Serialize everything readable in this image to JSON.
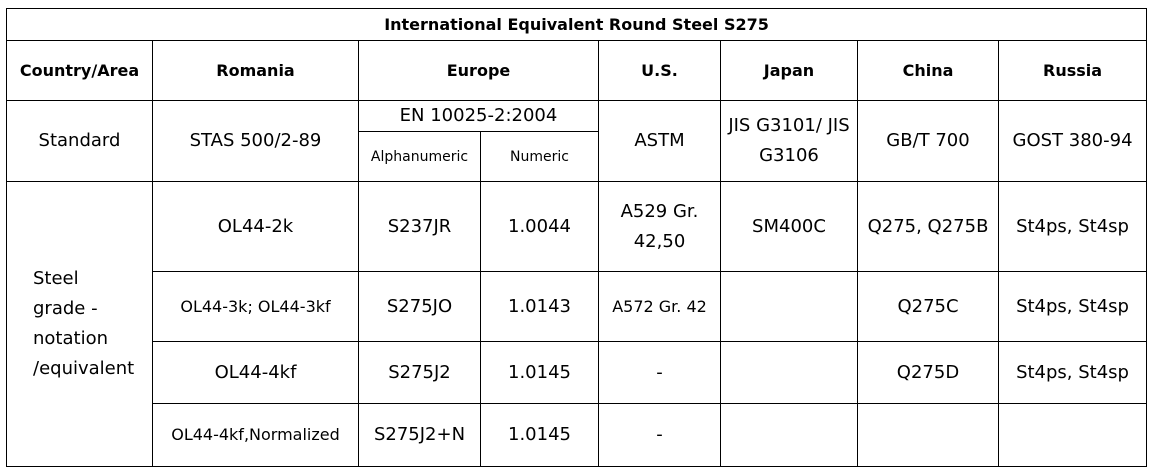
{
  "title": "International Equivalent Round Steel S275",
  "header": [
    "Country/Area",
    "Romania",
    "Europe",
    "U.S.",
    "Japan",
    "China",
    "Russia"
  ],
  "standard": {
    "label": "Standard",
    "romania": "STAS 500/2-89",
    "europe": "EN 10025-2:2004",
    "europe_sub": [
      "Alphanumeric",
      "Numeric"
    ],
    "us": "ASTM",
    "japan": "JIS G3101/ JIS G3106",
    "china": "GB/T 700",
    "russia": "GOST 380-94"
  },
  "grade_label": "Steel grade - notation /equivalent",
  "rows": [
    {
      "romania": "OL44-2k",
      "alphanumeric": "S237JR",
      "numeric": "1.0044",
      "us": "A529 Gr. 42,50",
      "japan": "SM400C",
      "china": "Q275, Q275B",
      "russia": "St4ps, St4sp"
    },
    {
      "romania": "OL44-3k; OL44-3kf",
      "alphanumeric": "S275JO",
      "numeric": "1.0143",
      "us": "A572 Gr. 42",
      "china": "Q275C",
      "russia": "St4ps, St4sp"
    },
    {
      "romania": "OL44-4kf",
      "alphanumeric": "S275J2",
      "numeric": "1.0145",
      "us": "-",
      "china": "Q275D",
      "russia": "St4ps, St4sp"
    },
    {
      "romania": "OL44-4kf,Normalized",
      "alphanumeric": "S275J2+N",
      "numeric": "1.0145",
      "us": "-"
    }
  ]
}
